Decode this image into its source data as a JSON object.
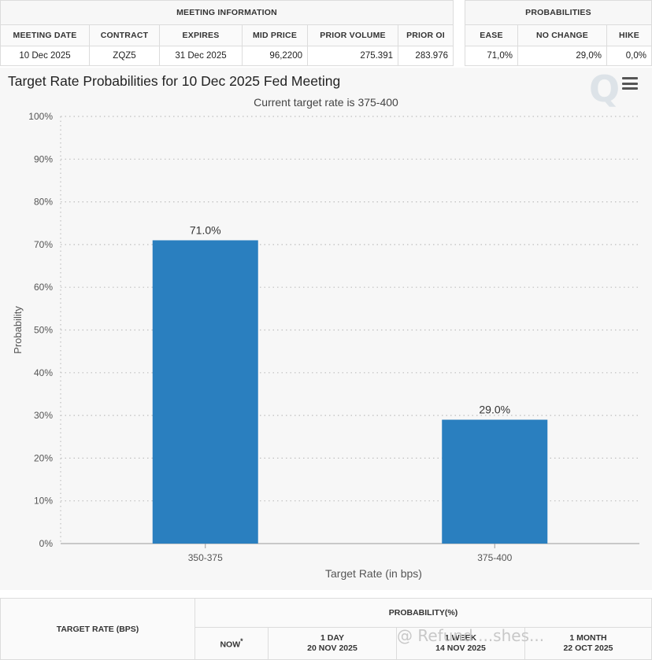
{
  "meeting_info": {
    "header": "MEETING INFORMATION",
    "columns": [
      "MEETING DATE",
      "CONTRACT",
      "EXPIRES",
      "MID PRICE",
      "PRIOR VOLUME",
      "PRIOR OI"
    ],
    "row": [
      "10 Dec 2025",
      "ZQZ5",
      "31 Dec 2025",
      "96,2200",
      "275.391",
      "283.976"
    ]
  },
  "probabilities": {
    "header": "PROBABILITIES",
    "columns": [
      "EASE",
      "NO CHANGE",
      "HIKE"
    ],
    "row": [
      "71,0%",
      "29,0%",
      "0,0%"
    ]
  },
  "chart": {
    "title": "Target Rate Probabilities for 10 Dec 2025 Fed Meeting",
    "subtitle": "Current target rate is 375-400",
    "watermark": "Q",
    "menu_icon": "hamburger-menu-icon"
  },
  "chart_data": {
    "type": "bar",
    "title": "Target Rate Probabilities for 10 Dec 2025 Fed Meeting",
    "subtitle": "Current target rate is 375-400",
    "categories": [
      "350-375",
      "375-400"
    ],
    "values": [
      71.0,
      29.0
    ],
    "data_labels": [
      "71.0%",
      "29.0%"
    ],
    "xlabel": "Target Rate (in bps)",
    "ylabel": "Probability",
    "ylim": [
      0,
      100
    ],
    "yticks": [
      0,
      10,
      20,
      30,
      40,
      50,
      60,
      70,
      80,
      90,
      100
    ],
    "ytick_labels": [
      "0%",
      "10%",
      "20%",
      "30%",
      "40%",
      "50%",
      "60%",
      "70%",
      "80%",
      "90%",
      "100%"
    ],
    "grid": true,
    "bar_color": "#2a7fbf"
  },
  "bottom_table": {
    "target_rate_header": "TARGET RATE (BPS)",
    "probability_header": "PROBABILITY(%)",
    "columns": [
      {
        "label": "NOW",
        "marker": "*",
        "date": ""
      },
      {
        "label": "1 DAY",
        "date": "20 NOV 2025"
      },
      {
        "label": "1 WEEK",
        "date": "14 NOV 2025"
      },
      {
        "label": "1 MONTH",
        "date": "22 OCT 2025"
      }
    ]
  },
  "footer_overlay": "@ Refund ...shes..."
}
